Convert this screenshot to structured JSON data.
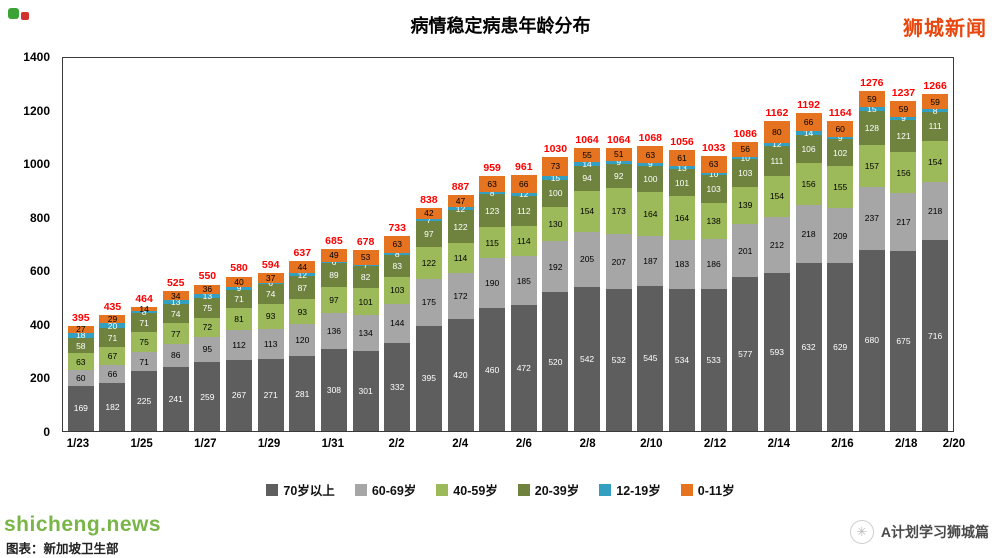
{
  "header": {
    "brand": "狮城新闻"
  },
  "chart_data": {
    "type": "bar",
    "stacked": true,
    "title": "病情稳定病患年龄分布",
    "x": [
      "1/23",
      "1/24",
      "1/25",
      "1/26",
      "1/27",
      "1/28",
      "1/29",
      "1/30",
      "1/31",
      "2/1",
      "2/2",
      "2/3",
      "2/4",
      "2/5",
      "2/6",
      "2/7",
      "2/8",
      "2/9",
      "2/10",
      "2/11",
      "2/12",
      "2/13",
      "2/14",
      "2/15",
      "2/16",
      "2/17",
      "2/18",
      "2/19"
    ],
    "x_tick_labels": [
      "1/23",
      "1/25",
      "1/27",
      "1/29",
      "1/31",
      "2/2",
      "2/4",
      "2/6",
      "2/8",
      "2/10",
      "2/12",
      "2/14",
      "2/16",
      "2/18",
      "2/20"
    ],
    "series": [
      {
        "name": "70岁以上",
        "color": "#5e5e5e",
        "text_color": "#ffffff",
        "values": [
          169,
          182,
          225,
          241,
          259,
          267,
          271,
          281,
          308,
          301,
          332,
          395,
          420,
          460,
          472,
          520,
          542,
          532,
          545,
          534,
          533,
          577,
          593,
          632,
          629,
          680,
          675,
          716
        ]
      },
      {
        "name": "60-69岁",
        "color": "#a6a6a6",
        "text_color": "#000000",
        "values": [
          60,
          66,
          71,
          86,
          95,
          112,
          113,
          120,
          136,
          134,
          144,
          175,
          172,
          190,
          185,
          192,
          205,
          207,
          187,
          183,
          186,
          201,
          212,
          218,
          209,
          237,
          217,
          218
        ]
      },
      {
        "name": "40-59岁",
        "color": "#9dba5a",
        "text_color": "#000000",
        "values": [
          63,
          67,
          75,
          77,
          72,
          81,
          93,
          93,
          97,
          101,
          103,
          122,
          114,
          115,
          114,
          130,
          154,
          173,
          164,
          164,
          138,
          139,
          154,
          156,
          155,
          157,
          156,
          154
        ]
      },
      {
        "name": "20-39岁",
        "color": "#6f833e",
        "text_color": "#ffffff",
        "values": [
          58,
          71,
          71,
          74,
          75,
          71,
          74,
          87,
          89,
          82,
          83,
          97,
          122,
          123,
          112,
          100,
          94,
          92,
          100,
          101,
          103,
          103,
          111,
          106,
          102,
          128,
          121,
          111
        ]
      },
      {
        "name": "12-19岁",
        "color": "#33a0c2",
        "text_color": "#ffffff",
        "values": [
          18,
          20,
          8,
          13,
          13,
          9,
          6,
          12,
          6,
          7,
          8,
          7,
          12,
          8,
          12,
          15,
          14,
          9,
          9,
          13,
          10,
          10,
          12,
          14,
          9,
          15,
          9,
          8
        ]
      },
      {
        "name": "0-11岁",
        "color": "#e5731f",
        "text_color": "#000000",
        "values": [
          27,
          29,
          14,
          34,
          36,
          40,
          37,
          44,
          49,
          53,
          63,
          42,
          47,
          63,
          66,
          73,
          55,
          51,
          63,
          61,
          63,
          56,
          80,
          66,
          60,
          59,
          59,
          59
        ]
      }
    ],
    "totals": [
      395,
      435,
      464,
      525,
      550,
      580,
      594,
      637,
      685,
      678,
      733,
      838,
      887,
      959,
      961,
      1030,
      1064,
      1064,
      1068,
      1056,
      1033,
      1086,
      1162,
      1192,
      1164,
      1276,
      1237,
      1266
    ],
    "total_color": "#ff0000",
    "ylim": [
      0,
      1400
    ],
    "y_ticks": [
      0,
      200,
      400,
      600,
      800,
      1000,
      1200,
      1400
    ],
    "legend_position": "bottom",
    "grid": false
  },
  "footer": {
    "watermark": "shicheng.news",
    "source": "图表：新加坡卫生部",
    "community": "A计划学习狮城篇"
  }
}
